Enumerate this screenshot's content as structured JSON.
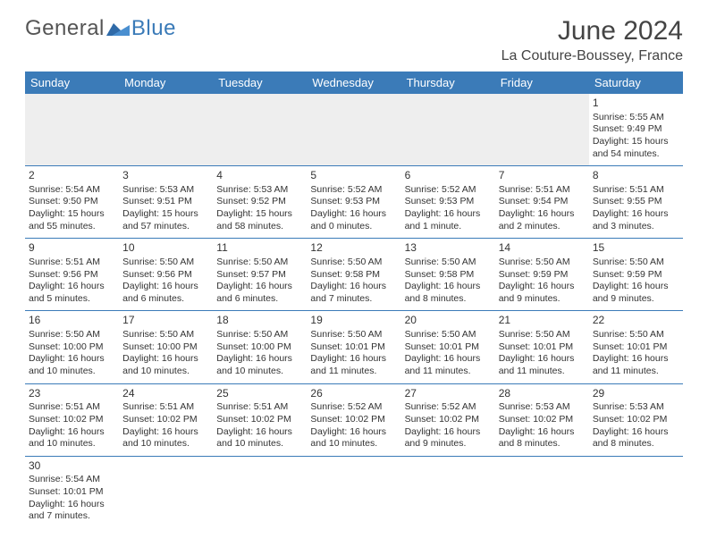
{
  "logo": {
    "text1": "General",
    "text2": "Blue"
  },
  "header": {
    "month": "June 2024",
    "location": "La Couture-Boussey, France"
  },
  "dayHeaders": [
    "Sunday",
    "Monday",
    "Tuesday",
    "Wednesday",
    "Thursday",
    "Friday",
    "Saturday"
  ],
  "colors": {
    "headerBg": "#3b7bb8",
    "text": "#333333"
  },
  "weeks": [
    [
      null,
      null,
      null,
      null,
      null,
      null,
      {
        "n": "1",
        "sr": "Sunrise: 5:55 AM",
        "ss": "Sunset: 9:49 PM",
        "dl1": "Daylight: 15 hours",
        "dl2": "and 54 minutes."
      }
    ],
    [
      {
        "n": "2",
        "sr": "Sunrise: 5:54 AM",
        "ss": "Sunset: 9:50 PM",
        "dl1": "Daylight: 15 hours",
        "dl2": "and 55 minutes."
      },
      {
        "n": "3",
        "sr": "Sunrise: 5:53 AM",
        "ss": "Sunset: 9:51 PM",
        "dl1": "Daylight: 15 hours",
        "dl2": "and 57 minutes."
      },
      {
        "n": "4",
        "sr": "Sunrise: 5:53 AM",
        "ss": "Sunset: 9:52 PM",
        "dl1": "Daylight: 15 hours",
        "dl2": "and 58 minutes."
      },
      {
        "n": "5",
        "sr": "Sunrise: 5:52 AM",
        "ss": "Sunset: 9:53 PM",
        "dl1": "Daylight: 16 hours",
        "dl2": "and 0 minutes."
      },
      {
        "n": "6",
        "sr": "Sunrise: 5:52 AM",
        "ss": "Sunset: 9:53 PM",
        "dl1": "Daylight: 16 hours",
        "dl2": "and 1 minute."
      },
      {
        "n": "7",
        "sr": "Sunrise: 5:51 AM",
        "ss": "Sunset: 9:54 PM",
        "dl1": "Daylight: 16 hours",
        "dl2": "and 2 minutes."
      },
      {
        "n": "8",
        "sr": "Sunrise: 5:51 AM",
        "ss": "Sunset: 9:55 PM",
        "dl1": "Daylight: 16 hours",
        "dl2": "and 3 minutes."
      }
    ],
    [
      {
        "n": "9",
        "sr": "Sunrise: 5:51 AM",
        "ss": "Sunset: 9:56 PM",
        "dl1": "Daylight: 16 hours",
        "dl2": "and 5 minutes."
      },
      {
        "n": "10",
        "sr": "Sunrise: 5:50 AM",
        "ss": "Sunset: 9:56 PM",
        "dl1": "Daylight: 16 hours",
        "dl2": "and 6 minutes."
      },
      {
        "n": "11",
        "sr": "Sunrise: 5:50 AM",
        "ss": "Sunset: 9:57 PM",
        "dl1": "Daylight: 16 hours",
        "dl2": "and 6 minutes."
      },
      {
        "n": "12",
        "sr": "Sunrise: 5:50 AM",
        "ss": "Sunset: 9:58 PM",
        "dl1": "Daylight: 16 hours",
        "dl2": "and 7 minutes."
      },
      {
        "n": "13",
        "sr": "Sunrise: 5:50 AM",
        "ss": "Sunset: 9:58 PM",
        "dl1": "Daylight: 16 hours",
        "dl2": "and 8 minutes."
      },
      {
        "n": "14",
        "sr": "Sunrise: 5:50 AM",
        "ss": "Sunset: 9:59 PM",
        "dl1": "Daylight: 16 hours",
        "dl2": "and 9 minutes."
      },
      {
        "n": "15",
        "sr": "Sunrise: 5:50 AM",
        "ss": "Sunset: 9:59 PM",
        "dl1": "Daylight: 16 hours",
        "dl2": "and 9 minutes."
      }
    ],
    [
      {
        "n": "16",
        "sr": "Sunrise: 5:50 AM",
        "ss": "Sunset: 10:00 PM",
        "dl1": "Daylight: 16 hours",
        "dl2": "and 10 minutes."
      },
      {
        "n": "17",
        "sr": "Sunrise: 5:50 AM",
        "ss": "Sunset: 10:00 PM",
        "dl1": "Daylight: 16 hours",
        "dl2": "and 10 minutes."
      },
      {
        "n": "18",
        "sr": "Sunrise: 5:50 AM",
        "ss": "Sunset: 10:00 PM",
        "dl1": "Daylight: 16 hours",
        "dl2": "and 10 minutes."
      },
      {
        "n": "19",
        "sr": "Sunrise: 5:50 AM",
        "ss": "Sunset: 10:01 PM",
        "dl1": "Daylight: 16 hours",
        "dl2": "and 11 minutes."
      },
      {
        "n": "20",
        "sr": "Sunrise: 5:50 AM",
        "ss": "Sunset: 10:01 PM",
        "dl1": "Daylight: 16 hours",
        "dl2": "and 11 minutes."
      },
      {
        "n": "21",
        "sr": "Sunrise: 5:50 AM",
        "ss": "Sunset: 10:01 PM",
        "dl1": "Daylight: 16 hours",
        "dl2": "and 11 minutes."
      },
      {
        "n": "22",
        "sr": "Sunrise: 5:50 AM",
        "ss": "Sunset: 10:01 PM",
        "dl1": "Daylight: 16 hours",
        "dl2": "and 11 minutes."
      }
    ],
    [
      {
        "n": "23",
        "sr": "Sunrise: 5:51 AM",
        "ss": "Sunset: 10:02 PM",
        "dl1": "Daylight: 16 hours",
        "dl2": "and 10 minutes."
      },
      {
        "n": "24",
        "sr": "Sunrise: 5:51 AM",
        "ss": "Sunset: 10:02 PM",
        "dl1": "Daylight: 16 hours",
        "dl2": "and 10 minutes."
      },
      {
        "n": "25",
        "sr": "Sunrise: 5:51 AM",
        "ss": "Sunset: 10:02 PM",
        "dl1": "Daylight: 16 hours",
        "dl2": "and 10 minutes."
      },
      {
        "n": "26",
        "sr": "Sunrise: 5:52 AM",
        "ss": "Sunset: 10:02 PM",
        "dl1": "Daylight: 16 hours",
        "dl2": "and 10 minutes."
      },
      {
        "n": "27",
        "sr": "Sunrise: 5:52 AM",
        "ss": "Sunset: 10:02 PM",
        "dl1": "Daylight: 16 hours",
        "dl2": "and 9 minutes."
      },
      {
        "n": "28",
        "sr": "Sunrise: 5:53 AM",
        "ss": "Sunset: 10:02 PM",
        "dl1": "Daylight: 16 hours",
        "dl2": "and 8 minutes."
      },
      {
        "n": "29",
        "sr": "Sunrise: 5:53 AM",
        "ss": "Sunset: 10:02 PM",
        "dl1": "Daylight: 16 hours",
        "dl2": "and 8 minutes."
      }
    ],
    [
      {
        "n": "30",
        "sr": "Sunrise: 5:54 AM",
        "ss": "Sunset: 10:01 PM",
        "dl1": "Daylight: 16 hours",
        "dl2": "and 7 minutes."
      },
      null,
      null,
      null,
      null,
      null,
      null
    ]
  ]
}
